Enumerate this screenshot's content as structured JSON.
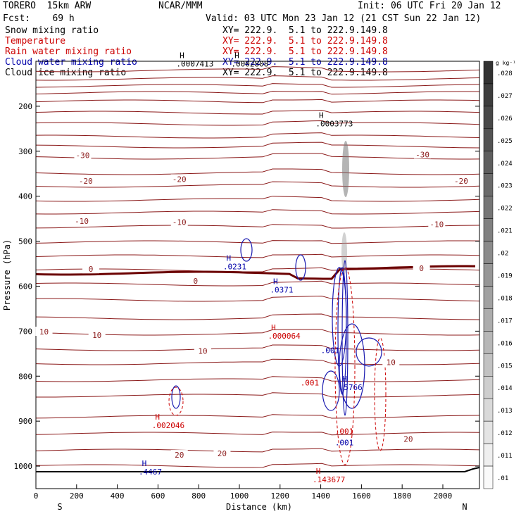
{
  "header": {
    "model": "TORERO  15km ARW",
    "org": "NCAR/MMM",
    "init": "Init: 06 UTC Fri 20 Jan 12",
    "fcst": "Fcst:    69 h",
    "valid": "Valid: 03 UTC Mon 23 Jan 12 (21 CST Sun 22 Jan 12)"
  },
  "legend": [
    {
      "label": "Snow mixing ratio",
      "xy": "XY= 222.9.  5.1 to 222.9.149.8",
      "color": "#000000"
    },
    {
      "label": "Temperature",
      "xy": "XY= 222.9.  5.1 to 222.9.149.8",
      "color": "#cc0000"
    },
    {
      "label": "Rain water mixing ratio",
      "xy": "XY= 222.9.  5.1 to 222.9.149.8",
      "color": "#cc0000"
    },
    {
      "label": "Cloud water mixing ratio",
      "xy": "XY= 222.9.  5.1 to 222.9.149.8",
      "color": "#0000aa"
    },
    {
      "label": "Cloud ice mixing ratio",
      "xy": "XY= 222.9.  5.1 to 222.9.149.8",
      "color": "#000000"
    }
  ],
  "chart_data": {
    "type": "contour",
    "xlabel": "Distance (km)",
    "ylabel": "Pressure (hPa)",
    "xlim": [
      0,
      2180
    ],
    "ylim": [
      1050,
      100
    ],
    "x_ticks": [
      0,
      200,
      400,
      600,
      800,
      1000,
      1200,
      1400,
      1600,
      1800,
      2000
    ],
    "y_ticks": [
      200,
      300,
      400,
      500,
      600,
      700,
      800,
      900,
      1000
    ],
    "x_end_labels": {
      "left": "S",
      "right": "N"
    },
    "colorbar": {
      "unit": "g kg⁻¹",
      "ticks": [
        ".028",
        ".027",
        ".026",
        ".025",
        ".024",
        ".023",
        ".022",
        ".021",
        ".02",
        ".019",
        ".018",
        ".017",
        ".016",
        ".015",
        ".014",
        ".013",
        ".012",
        ".011",
        ".01"
      ]
    },
    "temperature_labels": [
      {
        "text": "-30",
        "x": 230,
        "p": 309
      },
      {
        "text": "-30",
        "x": 1900,
        "p": 307
      },
      {
        "text": "-20",
        "x": 245,
        "p": 366
      },
      {
        "text": "-20",
        "x": 705,
        "p": 362
      },
      {
        "text": "-20",
        "x": 2090,
        "p": 366
      },
      {
        "text": "-10",
        "x": 225,
        "p": 455
      },
      {
        "text": "-10",
        "x": 705,
        "p": 458
      },
      {
        "text": "-10",
        "x": 1970,
        "p": 462
      },
      {
        "text": "0",
        "x": 270,
        "p": 562
      },
      {
        "text": "0",
        "x": 785,
        "p": 588
      },
      {
        "text": "0",
        "x": 1895,
        "p": 560
      },
      {
        "text": "10",
        "x": 40,
        "p": 701
      },
      {
        "text": "10",
        "x": 300,
        "p": 709
      },
      {
        "text": "10",
        "x": 820,
        "p": 744
      },
      {
        "text": "10",
        "x": 1745,
        "p": 769
      },
      {
        "text": "20",
        "x": 1830,
        "p": 940
      },
      {
        "text": "20",
        "x": 705,
        "p": 975
      },
      {
        "text": "20",
        "x": 915,
        "p": 972
      }
    ],
    "extrema": [
      {
        "text": "H",
        "value": ".0007413",
        "x": 690,
        "p": 93,
        "color": "#000000"
      },
      {
        "text": "H",
        "value": ".0002808",
        "x": 960,
        "p": 93,
        "color": "#000000"
      },
      {
        "text": "H",
        "value": ".0003773",
        "x": 1375,
        "p": 226,
        "color": "#000000"
      },
      {
        "text": "H",
        "value": ".0231",
        "x": 920,
        "p": 544,
        "color": "#0000aa"
      },
      {
        "text": "H",
        "value": ".0371",
        "x": 1150,
        "p": 595,
        "color": "#0000aa"
      },
      {
        "text": "H",
        "value": ".000064",
        "x": 1140,
        "p": 698,
        "color": "#cc0000"
      },
      {
        "text": "",
        "value": ".001",
        "x": 1400,
        "p": 730,
        "color": "#0000aa"
      },
      {
        "text": "",
        "value": ".001",
        "x": 1300,
        "p": 802,
        "color": "#cc0000"
      },
      {
        "text": "H",
        "value": ".5766",
        "x": 1490,
        "p": 812,
        "color": "#0000aa"
      },
      {
        "text": "H",
        "value": ".002046",
        "x": 570,
        "p": 897,
        "color": "#cc0000"
      },
      {
        "text": "",
        "value": ".001",
        "x": 1470,
        "p": 910,
        "color": "#cc0000"
      },
      {
        "text": "",
        "value": ".001",
        "x": 1470,
        "p": 935,
        "color": "#0000aa"
      },
      {
        "text": "H",
        "value": ".4467",
        "x": 505,
        "p": 1000,
        "color": "#0000aa"
      },
      {
        "text": "H",
        "value": ".143677",
        "x": 1360,
        "p": 1017,
        "color": "#cc0000"
      }
    ]
  }
}
